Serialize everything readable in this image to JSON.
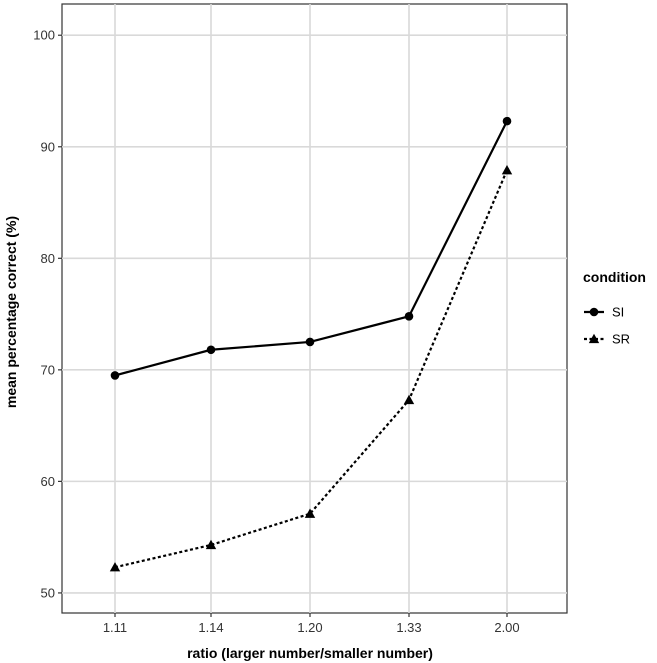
{
  "chart_data": {
    "type": "line",
    "title": "",
    "xlabel": "ratio (larger number/smaller number)",
    "ylabel": "mean percentage correct (%)",
    "categories": [
      "1.11",
      "1.14",
      "1.20",
      "1.33",
      "2.00"
    ],
    "ylim": [
      48.2,
      102.8
    ],
    "yticks": [
      50,
      60,
      70,
      80,
      90,
      100
    ],
    "grid": true,
    "legend": {
      "title": "condition",
      "position": "right"
    },
    "series": [
      {
        "name": "SI",
        "values": [
          69.5,
          71.8,
          72.5,
          74.8,
          92.3
        ],
        "marker": "circle",
        "line": "solid",
        "color": "#000000"
      },
      {
        "name": "SR",
        "values": [
          52.3,
          54.3,
          57.1,
          67.3,
          87.9
        ],
        "marker": "triangle",
        "line": "dashed",
        "color": "#000000"
      }
    ]
  }
}
